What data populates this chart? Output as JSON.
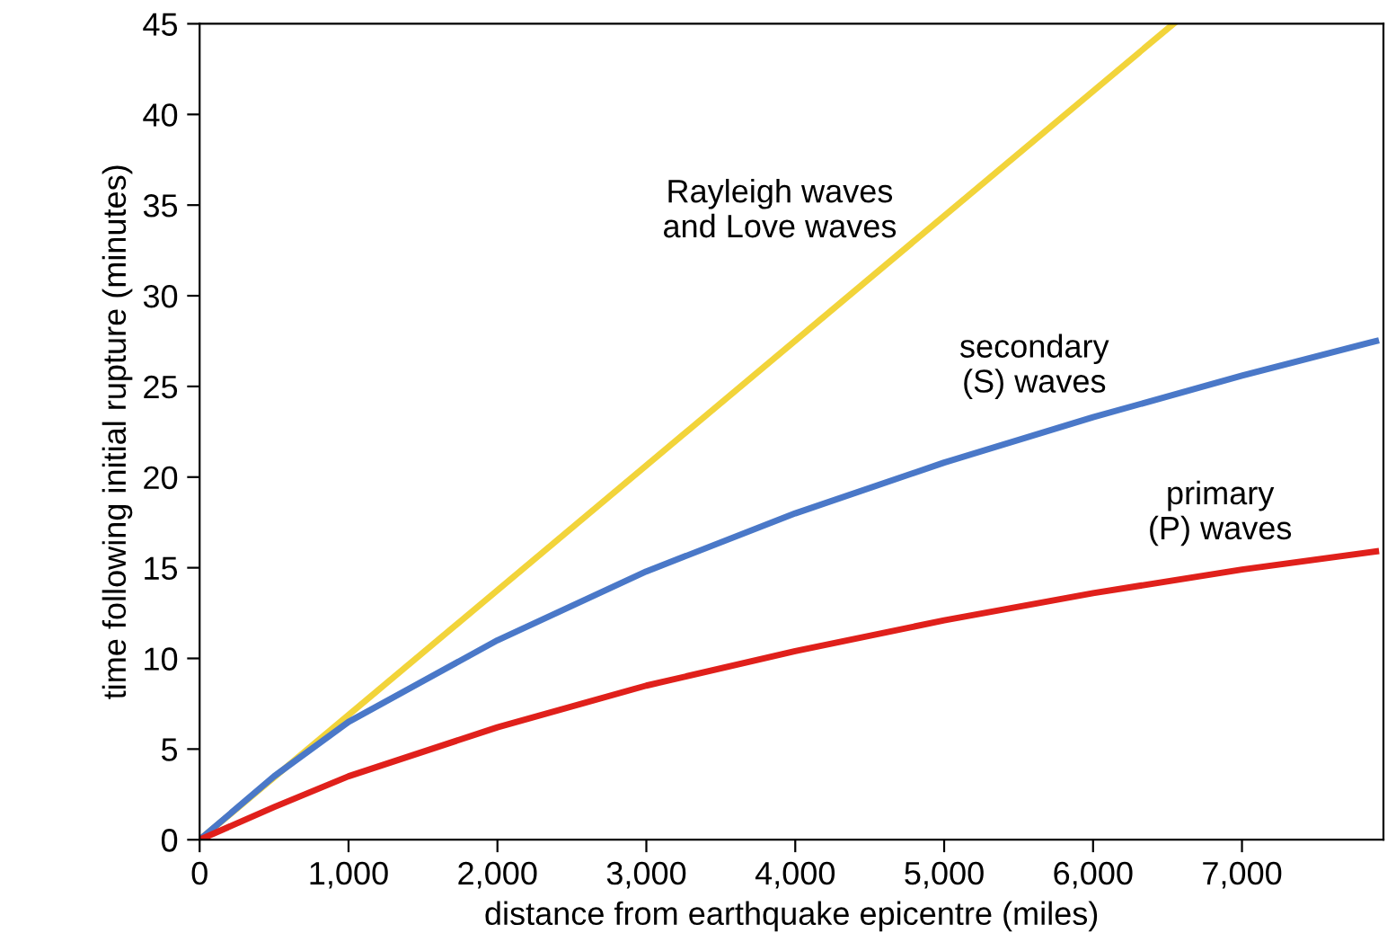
{
  "chart_data": {
    "type": "line",
    "xlabel": "distance from earthquake epicentre (miles)",
    "ylabel": "time following initial rupture (minutes)",
    "xlim": [
      0,
      7950
    ],
    "ylim": [
      0,
      45
    ],
    "xticks": [
      0,
      {
        "value": 1000,
        "label": "1,000"
      },
      {
        "value": 2000,
        "label": "2,000"
      },
      {
        "value": 3000,
        "label": "3,000"
      },
      {
        "value": 4000,
        "label": "4,000"
      },
      {
        "value": 5000,
        "label": "5,000"
      },
      {
        "value": 6000,
        "label": "6,000"
      },
      {
        "value": 7000,
        "label": "7,000"
      }
    ],
    "yticks": [
      0,
      5,
      10,
      15,
      20,
      25,
      30,
      35,
      40,
      45
    ],
    "grid": false,
    "legend": false,
    "marker": "none",
    "line_style": "solid",
    "series": [
      {
        "name": "Rayleigh waves\nand Love waves",
        "color": "#f2d43a",
        "x": [
          0,
          6540
        ],
        "values": [
          0,
          45
        ]
      },
      {
        "name": "secondary\n(S) waves",
        "color": "#4a78c8",
        "x": [
          0,
          500,
          1000,
          2000,
          3000,
          4000,
          5000,
          6000,
          7000,
          7900
        ],
        "values": [
          0,
          3.5,
          6.5,
          11,
          14.8,
          18,
          20.8,
          23.3,
          25.6,
          27.5
        ]
      },
      {
        "name": "primary\n(P) waves",
        "color": "#e0201b",
        "x": [
          0,
          500,
          1000,
          2000,
          3000,
          4000,
          5000,
          6000,
          7000,
          7900
        ],
        "values": [
          0,
          1.8,
          3.5,
          6.2,
          8.5,
          10.4,
          12.1,
          13.6,
          14.9,
          15.9
        ]
      }
    ]
  }
}
